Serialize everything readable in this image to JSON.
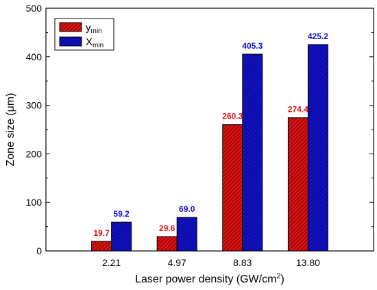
{
  "chart_data": {
    "type": "bar",
    "categories": [
      "2.21",
      "4.97",
      "8.83",
      "13.80"
    ],
    "series": [
      {
        "name": "y",
        "subscript": "min",
        "color": "#dd1111",
        "values": [
          19.7,
          29.6,
          260.3,
          274.4
        ],
        "labels": [
          "19.7",
          "29.6",
          "260.3",
          "274.4"
        ]
      },
      {
        "name": "X",
        "subscript": "min",
        "color": "#1111cc",
        "values": [
          59.2,
          69.0,
          405.3,
          425.2
        ],
        "labels": [
          "59.2",
          "69.0",
          "405.3",
          "425.2"
        ]
      }
    ],
    "xlabel": {
      "main": "Laser power density (GW/cm",
      "sup": "2",
      "end": ")"
    },
    "ylabel": {
      "main": "Zone size (",
      "greek": "μ",
      "end": "m)"
    },
    "ylim": [
      0,
      500
    ],
    "yticks": [
      0,
      100,
      200,
      300,
      400,
      500
    ],
    "ytick_labels": [
      "0",
      "100",
      "200",
      "300",
      "400",
      "500"
    ],
    "bar_pattern": "diagonal-hatch",
    "grid": false,
    "legend_position": "top-left"
  }
}
